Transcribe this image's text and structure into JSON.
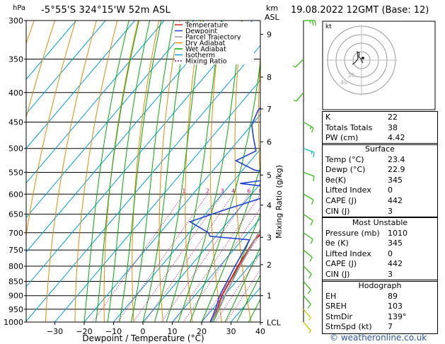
{
  "header": {
    "location": "-5°55'S  324°15'W  52m  ASL",
    "date": "19.08.2022  12GMT  (Base: 12)",
    "p_unit": "hPa",
    "km_unit": "km",
    "asl_unit": "ASL"
  },
  "chart_data": {
    "type": "line",
    "xlabel": "Dewpoint / Temperature (°C)",
    "ylabel_right": "Mixing Ratio (g/kg)",
    "x_ticks": [
      -30,
      -20,
      -10,
      0,
      10,
      20,
      30,
      40
    ],
    "x_tick_labels": [
      "−30",
      "−20",
      "−10",
      "0",
      "10",
      "20",
      "30",
      "40"
    ],
    "p_levels": [
      300,
      350,
      400,
      450,
      500,
      550,
      600,
      650,
      700,
      750,
      800,
      850,
      900,
      950,
      1000
    ],
    "height_km": [
      {
        "km": "9",
        "p": 317
      },
      {
        "km": "8",
        "p": 376
      },
      {
        "km": "7",
        "p": 427
      },
      {
        "km": "6",
        "p": 487
      },
      {
        "km": "5",
        "p": 556
      },
      {
        "km": "4",
        "p": 627
      },
      {
        "km": "3",
        "p": 713
      },
      {
        "km": "2",
        "p": 795
      },
      {
        "km": "1",
        "p": 900
      },
      {
        "km": "LCL",
        "p": 1002
      }
    ],
    "mixing_ratio_labels": [
      "1",
      "2",
      "3",
      "4",
      "6",
      "8",
      "10",
      "15",
      "20",
      "25"
    ],
    "legend": [
      "Temperature",
      "Dewpoint",
      "Parcel Trajectory",
      "Dry Adiabat",
      "Wet Adiabat",
      "Isotherm",
      "Mixing Ratio"
    ],
    "series": [
      {
        "name": "Temperature",
        "points": [
          [
            23.4,
            1000
          ],
          [
            21.6,
            950
          ],
          [
            19.2,
            900
          ],
          [
            17.8,
            850
          ],
          [
            16.2,
            800
          ],
          [
            15.0,
            750
          ],
          [
            14.2,
            720
          ],
          [
            14.8,
            700
          ],
          [
            13.2,
            680
          ],
          [
            10.8,
            650
          ],
          [
            8.6,
            620
          ],
          [
            7.1,
            600
          ],
          [
            6.6,
            570
          ],
          [
            5.5,
            550
          ],
          [
            4.6,
            520
          ],
          [
            3.2,
            500
          ],
          [
            1.3,
            475
          ],
          [
            -1.6,
            450
          ],
          [
            -3.5,
            425
          ],
          [
            -5.0,
            400
          ],
          [
            -8.5,
            380
          ],
          [
            -10.5,
            360
          ],
          [
            -14.0,
            345
          ],
          [
            -20.5,
            320
          ],
          [
            -25.0,
            300
          ]
        ]
      },
      {
        "name": "Dewpoint",
        "points": [
          [
            22.9,
            1000
          ],
          [
            21.0,
            950
          ],
          [
            18.5,
            900
          ],
          [
            16.9,
            850
          ],
          [
            15.2,
            800
          ],
          [
            13.6,
            750
          ],
          [
            12.5,
            720
          ],
          [
            -2.0,
            710
          ],
          [
            -3.5,
            700
          ],
          [
            -13.0,
            670
          ],
          [
            -5.0,
            640
          ],
          [
            6.0,
            605
          ],
          [
            6.8,
            585
          ],
          [
            -7.0,
            575
          ],
          [
            7.5,
            560
          ],
          [
            -6.0,
            545
          ],
          [
            -15.0,
            525
          ],
          [
            -11.0,
            505
          ],
          [
            -15.5,
            480
          ],
          [
            -20.0,
            455
          ],
          [
            -22.0,
            430
          ],
          [
            -22.0,
            400
          ],
          [
            -17.0,
            370
          ],
          [
            -22.0,
            345
          ],
          [
            -40.0,
            322
          ],
          [
            -38.0,
            300
          ]
        ]
      },
      {
        "name": "Parcel Trajectory",
        "points": [
          [
            23.4,
            1000
          ],
          [
            22.0,
            950
          ],
          [
            20.2,
            900
          ],
          [
            18.6,
            850
          ],
          [
            16.9,
            800
          ],
          [
            15.3,
            750
          ],
          [
            13.6,
            700
          ],
          [
            11.6,
            650
          ],
          [
            9.4,
            600
          ],
          [
            7.0,
            550
          ],
          [
            4.3,
            500
          ],
          [
            1.2,
            450
          ],
          [
            -2.3,
            400
          ],
          [
            -6.5,
            350
          ],
          [
            -11.5,
            300
          ]
        ]
      }
    ],
    "wind_barbs": [
      {
        "p": 300,
        "dir": 90,
        "speed": 25
      },
      {
        "p": 350,
        "dir": 225,
        "speed": 8
      },
      {
        "p": 400,
        "dir": 220,
        "speed": 5
      },
      {
        "p": 450,
        "dir": 120,
        "speed": 15
      },
      {
        "p": 500,
        "dir": 110,
        "speed": 15
      },
      {
        "p": 550,
        "dir": 110,
        "speed": 12
      },
      {
        "p": 600,
        "dir": 120,
        "speed": 10
      },
      {
        "p": 650,
        "dir": 125,
        "speed": 10
      },
      {
        "p": 700,
        "dir": 125,
        "speed": 10
      },
      {
        "p": 750,
        "dir": 130,
        "speed": 10
      },
      {
        "p": 800,
        "dir": 135,
        "speed": 10
      },
      {
        "p": 850,
        "dir": 140,
        "speed": 10
      },
      {
        "p": 900,
        "dir": 140,
        "speed": 10
      },
      {
        "p": 950,
        "dir": 140,
        "speed": 8
      },
      {
        "p": 1000,
        "dir": 140,
        "speed": 5
      }
    ],
    "hodograph": {
      "label": "kt",
      "ring_labels": [
        "40",
        "30"
      ]
    }
  },
  "indices": [
    {
      "label": "K",
      "value": "22"
    },
    {
      "label": "Totals Totals",
      "value": "38"
    },
    {
      "label": "PW (cm)",
      "value": "4.42"
    }
  ],
  "surface": {
    "title": "Surface",
    "rows": [
      {
        "label": "Temp (°C)",
        "value": "23.4"
      },
      {
        "label": "Dewp (°C)",
        "value": "22.9"
      },
      {
        "label": "θe(K)",
        "value": "345"
      },
      {
        "label": "Lifted Index",
        "value": "0"
      },
      {
        "label": "CAPE (J)",
        "value": "442"
      },
      {
        "label": "CIN (J)",
        "value": "3"
      }
    ]
  },
  "most_unstable": {
    "title": "Most Unstable",
    "rows": [
      {
        "label": "Pressure (mb)",
        "value": "1010"
      },
      {
        "label": "θe (K)",
        "value": "345"
      },
      {
        "label": "Lifted Index",
        "value": "0"
      },
      {
        "label": "CAPE (J)",
        "value": "442"
      },
      {
        "label": "CIN (J)",
        "value": "3"
      }
    ]
  },
  "hodograph_table": {
    "title": "Hodograph",
    "rows": [
      {
        "label": "EH",
        "value": "89"
      },
      {
        "label": "SREH",
        "value": "103"
      },
      {
        "label": "StmDir",
        "value": "139°"
      },
      {
        "label": "StmSpd (kt)",
        "value": "7"
      }
    ]
  },
  "footer": {
    "text": "© weatheronline.co.uk"
  },
  "colors": {
    "temperature": "#d02020",
    "dewpoint": "#2040d0",
    "parcel": "#999999",
    "dry_adiabat": "#e08a00",
    "wet_adiabat": "#00aa00",
    "isotherm": "#00a0e0",
    "mixing_ratio": "#cc0077",
    "wind": "#40c020",
    "wind_low": "#d0c800",
    "wind_cyan": "#20c0c0"
  }
}
